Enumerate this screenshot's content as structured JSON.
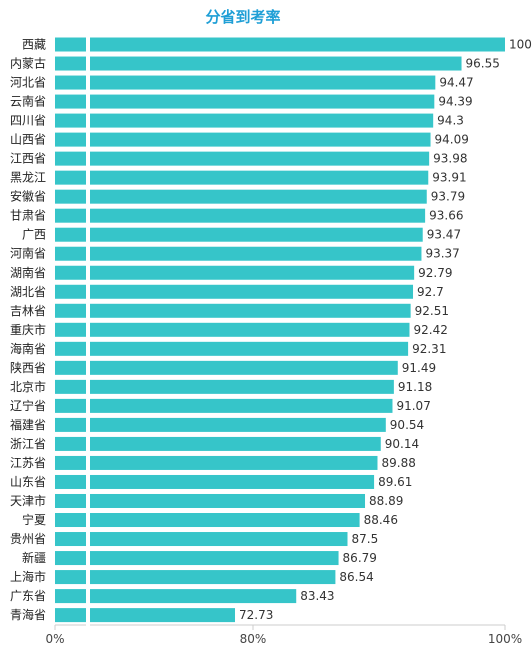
{
  "chart_data": {
    "type": "bar",
    "orientation": "horizontal",
    "title": "分省到考率",
    "xlabel": "",
    "ylabel": "",
    "bar_color": "#36c5c9",
    "axis_ticks": [
      "0%",
      "80%",
      "100%"
    ],
    "axis_break": true,
    "xlim": [
      0,
      100
    ],
    "categories": [
      "西藏",
      "内蒙古",
      "河北省",
      "云南省",
      "四川省",
      "山西省",
      "江西省",
      "黑龙江",
      "安徽省",
      "甘肃省",
      "广西",
      "河南省",
      "湖南省",
      "湖北省",
      "吉林省",
      "重庆市",
      "海南省",
      "陕西省",
      "北京市",
      "辽宁省",
      "福建省",
      "浙江省",
      "江苏省",
      "山东省",
      "天津市",
      "宁夏",
      "贵州省",
      "新疆",
      "上海市",
      "广东省",
      "青海省"
    ],
    "values": [
      100,
      96.55,
      94.47,
      94.39,
      94.3,
      94.09,
      93.98,
      93.91,
      93.79,
      93.66,
      93.47,
      93.37,
      92.79,
      92.7,
      92.51,
      92.42,
      92.31,
      91.49,
      91.18,
      91.07,
      90.54,
      90.14,
      89.88,
      89.61,
      88.89,
      88.46,
      87.5,
      86.79,
      86.54,
      83.43,
      72.73
    ],
    "value_labels": [
      "100",
      "96.55",
      "94.47",
      "94.39",
      "94.3",
      "94.09",
      "93.98",
      "93.91",
      "93.79",
      "93.66",
      "93.47",
      "93.37",
      "92.79",
      "92.7",
      "92.51",
      "92.42",
      "92.31",
      "91.49",
      "91.18",
      "91.07",
      "90.54",
      "90.14",
      "89.88",
      "89.61",
      "88.89",
      "88.46",
      "87.5",
      "86.79",
      "86.54",
      "83.43",
      "72.73"
    ]
  }
}
